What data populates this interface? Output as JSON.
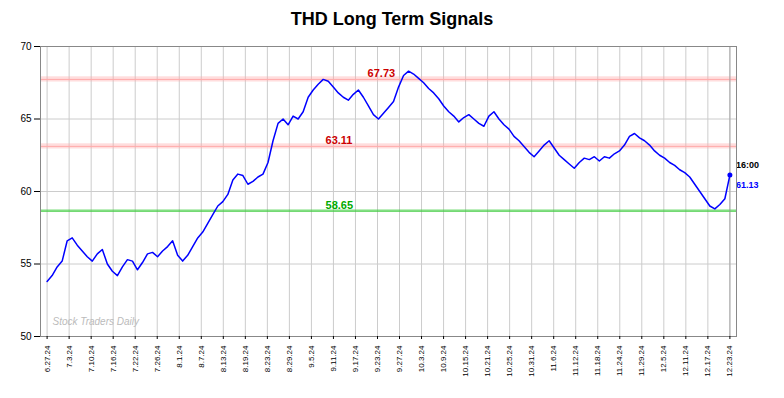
{
  "chart_data": {
    "type": "line",
    "title": "THD Long Term Signals",
    "color": "blue",
    "grid": true,
    "x": [
      0,
      1,
      2,
      3,
      4,
      5,
      6,
      7,
      8,
      9,
      10,
      11,
      12,
      13,
      14,
      15,
      16,
      17,
      18,
      19,
      20,
      21,
      22,
      23,
      24,
      25,
      26,
      27,
      28,
      29,
      30,
      31,
      32,
      33,
      34,
      35,
      36,
      37,
      38,
      39,
      40,
      41,
      42,
      43,
      44,
      45,
      46,
      47,
      48,
      49,
      50,
      51,
      52,
      53,
      54,
      55,
      56,
      57,
      58,
      59,
      60,
      61,
      62,
      63,
      64,
      65,
      66,
      67,
      68,
      69,
      70,
      71,
      72,
      73,
      74,
      75,
      76,
      77,
      78,
      79,
      80,
      81,
      82,
      83,
      84,
      85,
      86,
      87,
      88,
      89,
      90,
      91,
      92,
      93,
      94,
      95,
      96,
      97,
      98,
      99,
      100,
      101,
      102,
      103,
      104,
      105,
      106,
      107,
      108,
      109,
      110,
      111,
      112,
      113,
      114,
      115,
      116,
      117,
      118,
      119,
      120,
      121,
      122,
      123,
      124,
      125,
      126,
      127,
      128,
      129,
      130,
      131,
      132,
      133,
      134,
      135,
      136
    ],
    "values": [
      53.8,
      54.2,
      54.8,
      55.2,
      56.6,
      56.8,
      56.3,
      55.9,
      55.5,
      55.2,
      55.7,
      56.0,
      55.0,
      54.5,
      54.2,
      54.8,
      55.3,
      55.2,
      54.6,
      55.1,
      55.7,
      55.8,
      55.5,
      55.9,
      56.2,
      56.6,
      55.6,
      55.2,
      55.6,
      56.2,
      56.8,
      57.2,
      57.8,
      58.4,
      59.0,
      59.3,
      59.8,
      60.8,
      61.2,
      61.1,
      60.5,
      60.7,
      61.0,
      61.2,
      62.0,
      63.5,
      64.7,
      65.0,
      64.6,
      65.2,
      65.0,
      65.5,
      66.5,
      67.0,
      67.4,
      67.73,
      67.6,
      67.2,
      66.8,
      66.5,
      66.3,
      66.7,
      67.0,
      66.5,
      65.9,
      65.3,
      65.0,
      65.4,
      65.8,
      66.2,
      67.2,
      68.0,
      68.3,
      68.1,
      67.8,
      67.5,
      67.1,
      66.8,
      66.4,
      65.9,
      65.5,
      65.2,
      64.8,
      65.1,
      65.3,
      65.0,
      64.7,
      64.5,
      65.2,
      65.5,
      65.0,
      64.6,
      64.3,
      63.8,
      63.5,
      63.1,
      62.7,
      62.4,
      62.8,
      63.2,
      63.5,
      63.0,
      62.5,
      62.2,
      61.9,
      61.6,
      62.0,
      62.3,
      62.2,
      62.4,
      62.1,
      62.4,
      62.3,
      62.6,
      62.8,
      63.2,
      63.8,
      64.0,
      63.7,
      63.5,
      63.2,
      62.8,
      62.5,
      62.3,
      62.0,
      61.8,
      61.5,
      61.3,
      61.0,
      60.5,
      60.0,
      59.5,
      59.0,
      58.8,
      59.1,
      59.5,
      61.13
    ],
    "xlim": [
      -1.3161,
      137.3161
    ],
    "xticks": [
      {
        "value": 0,
        "label": "6.27.24"
      },
      {
        "value": 4.3871,
        "label": "7.3.24"
      },
      {
        "value": 8.7742,
        "label": "7.10.24"
      },
      {
        "value": 13.1613,
        "label": "7.16.24"
      },
      {
        "value": 17.5484,
        "label": "7.22.24"
      },
      {
        "value": 21.9355,
        "label": "7.26.24"
      },
      {
        "value": 26.3226,
        "label": "8.1.24"
      },
      {
        "value": 30.7097,
        "label": "8.7.24"
      },
      {
        "value": 35.0968,
        "label": "8.13.24"
      },
      {
        "value": 39.4839,
        "label": "8.19.24"
      },
      {
        "value": 43.871,
        "label": "8.23.24"
      },
      {
        "value": 48.2581,
        "label": "8.29.24"
      },
      {
        "value": 52.6452,
        "label": "9.5.24"
      },
      {
        "value": 57.0323,
        "label": "9.11.24"
      },
      {
        "value": 61.4194,
        "label": "9.17.24"
      },
      {
        "value": 65.8065,
        "label": "9.23.24"
      },
      {
        "value": 70.1935,
        "label": "9.27.24"
      },
      {
        "value": 74.5806,
        "label": "10.3.24"
      },
      {
        "value": 78.9677,
        "label": "10.9.24"
      },
      {
        "value": 83.3548,
        "label": "10.15.24"
      },
      {
        "value": 87.7419,
        "label": "10.21.24"
      },
      {
        "value": 92.129,
        "label": "10.25.24"
      },
      {
        "value": 96.5161,
        "label": "10.31.24"
      },
      {
        "value": 100.9032,
        "label": "11.6.24"
      },
      {
        "value": 105.2903,
        "label": "11.12.24"
      },
      {
        "value": 109.6774,
        "label": "11.18.24"
      },
      {
        "value": 114.0645,
        "label": "11.24.24"
      },
      {
        "value": 118.4516,
        "label": "11.29.24"
      },
      {
        "value": 122.8387,
        "label": "12.5.24"
      },
      {
        "value": 127.2258,
        "label": "12.11.24"
      },
      {
        "value": 131.6129,
        "label": "12.17.24"
      },
      {
        "value": 136,
        "label": "12.23.24"
      }
    ],
    "ylim": [
      50,
      70
    ],
    "yticks": [
      50,
      55,
      60,
      65,
      70
    ],
    "reference_lines": [
      {
        "value": 67.73,
        "label": "67.73",
        "color": "#ffaaaa",
        "label_color": "#cc0000"
      },
      {
        "value": 63.11,
        "label": "63.11",
        "color": "#ffaaaa",
        "label_color": "#cc0000"
      },
      {
        "value": 58.65,
        "label": "58.65",
        "color": "#44cc44",
        "label_color": "#00aa00"
      }
    ],
    "annotations": [
      {
        "text": "16:00",
        "color": "black"
      },
      {
        "text": "61.13",
        "color": "blue"
      }
    ],
    "watermark": {
      "text": "Stock Traders Daily",
      "color": "#bbbbbb"
    }
  }
}
